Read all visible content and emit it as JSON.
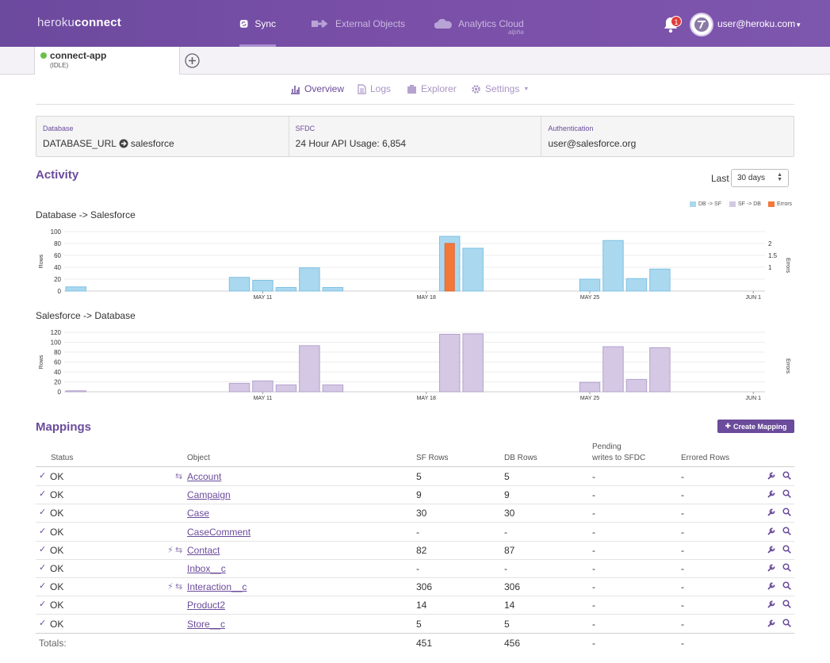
{
  "header": {
    "brand_light": "heroku",
    "brand_bold": "connect",
    "nav": [
      {
        "label": "Sync",
        "icon": "sync-icon"
      },
      {
        "label": "External Objects",
        "icon": "external-objects-icon"
      },
      {
        "label": "Analytics Cloud",
        "sub": "alpha",
        "icon": "cloud-icon"
      }
    ],
    "notifications": "1",
    "user": "user@heroku.com"
  },
  "app_tab": {
    "name": "connect-app",
    "state": "(IDLE)",
    "status_color": "#6cc04a"
  },
  "subnav": [
    {
      "label": "Overview",
      "icon": "bar-chart-icon"
    },
    {
      "label": "Logs",
      "icon": "document-icon"
    },
    {
      "label": "Explorer",
      "icon": "explorer-icon"
    },
    {
      "label": "Settings",
      "icon": "gear-icon"
    }
  ],
  "info": {
    "database": {
      "label": "Database",
      "value_a": "DATABASE_URL",
      "value_b": "salesforce"
    },
    "sfdc": {
      "label": "SFDC",
      "value": "24 Hour API Usage: 6,854"
    },
    "auth": {
      "label": "Authentication",
      "value": "user@salesforce.org"
    }
  },
  "activity": {
    "title": "Activity",
    "last_label": "Last",
    "range": "30 days",
    "legend": [
      {
        "label": "DB -> SF",
        "color": "#aad8ef"
      },
      {
        "label": "SF -> DB",
        "color": "#d4c8e4"
      },
      {
        "label": "Errors",
        "color": "#f4773a"
      }
    ]
  },
  "chart_data": [
    {
      "type": "bar",
      "title": "Database -> Salesforce",
      "ylabel": "Rows",
      "y2label": "Errors",
      "ylim": [
        0,
        100
      ],
      "yticks": [
        0,
        20,
        40,
        60,
        80,
        100
      ],
      "y2ticks": [
        "1",
        "1.5",
        "2"
      ],
      "xticks": [
        {
          "label": "MAY 11",
          "day": 8
        },
        {
          "label": "MAY 18",
          "day": 15
        },
        {
          "label": "MAY 25",
          "day": 22
        },
        {
          "label": "JUN 1",
          "day": 29
        }
      ],
      "series": [
        {
          "name": "DB -> SF",
          "values": [
            7,
            0,
            0,
            0,
            0,
            0,
            0,
            23,
            18,
            6,
            39,
            6,
            0,
            0,
            0,
            0,
            92,
            72,
            0,
            0,
            0,
            0,
            20,
            85,
            21,
            37,
            0,
            0,
            0,
            0
          ]
        },
        {
          "name": "Errors",
          "values": [
            0,
            0,
            0,
            0,
            0,
            0,
            0,
            0,
            0,
            0,
            0,
            0,
            0,
            0,
            0,
            0,
            2,
            0,
            0,
            0,
            0,
            0,
            0,
            0,
            0,
            0,
            0,
            0,
            0,
            0
          ]
        }
      ]
    },
    {
      "type": "bar",
      "title": "Salesforce -> Database",
      "ylabel": "Rows",
      "y2label": "Errors",
      "ylim": [
        0,
        120
      ],
      "yticks": [
        0,
        20,
        40,
        60,
        80,
        100,
        120
      ],
      "xticks": [
        {
          "label": "MAY 11",
          "day": 8
        },
        {
          "label": "MAY 18",
          "day": 15
        },
        {
          "label": "MAY 25",
          "day": 22
        },
        {
          "label": "JUN 1",
          "day": 29
        }
      ],
      "series": [
        {
          "name": "SF -> DB",
          "values": [
            2,
            0,
            0,
            0,
            0,
            0,
            0,
            17,
            22,
            14,
            93,
            14,
            0,
            0,
            0,
            0,
            116,
            117,
            0,
            0,
            0,
            0,
            19,
            91,
            25,
            89,
            0,
            0,
            0,
            0
          ]
        }
      ]
    }
  ],
  "mappings": {
    "title": "Mappings",
    "create_label": "Create Mapping",
    "columns": {
      "status": "Status",
      "object": "Object",
      "sf_rows": "SF Rows",
      "db_rows": "DB Rows",
      "pending_1": "Pending",
      "pending_2": "writes to SFDC",
      "errored": "Errored Rows"
    },
    "rows": [
      {
        "status": "OK",
        "object": "Account",
        "sf": "5",
        "db": "5",
        "pending": "-",
        "errored": "-",
        "bolt": false,
        "sync": true
      },
      {
        "status": "OK",
        "object": "Campaign",
        "sf": "9",
        "db": "9",
        "pending": "-",
        "errored": "-",
        "bolt": false,
        "sync": false
      },
      {
        "status": "OK",
        "object": "Case",
        "sf": "30",
        "db": "30",
        "pending": "-",
        "errored": "-",
        "bolt": false,
        "sync": false
      },
      {
        "status": "OK",
        "object": "CaseComment",
        "sf": "-",
        "db": "-",
        "pending": "-",
        "errored": "-",
        "bolt": false,
        "sync": false
      },
      {
        "status": "OK",
        "object": "Contact",
        "sf": "82",
        "db": "87",
        "pending": "-",
        "errored": "-",
        "bolt": true,
        "sync": true
      },
      {
        "status": "OK",
        "object": "Inbox__c",
        "sf": "-",
        "db": "-",
        "pending": "-",
        "errored": "-",
        "bolt": false,
        "sync": false
      },
      {
        "status": "OK",
        "object": "Interaction__c",
        "sf": "306",
        "db": "306",
        "pending": "-",
        "errored": "-",
        "bolt": true,
        "sync": true
      },
      {
        "status": "OK",
        "object": "Product2",
        "sf": "14",
        "db": "14",
        "pending": "-",
        "errored": "-",
        "bolt": false,
        "sync": false
      },
      {
        "status": "OK",
        "object": "Store__c",
        "sf": "5",
        "db": "5",
        "pending": "-",
        "errored": "-",
        "bolt": false,
        "sync": false
      }
    ],
    "totals": {
      "label": "Totals:",
      "sf": "451",
      "db": "456",
      "pending": "-",
      "errored": "-"
    }
  }
}
